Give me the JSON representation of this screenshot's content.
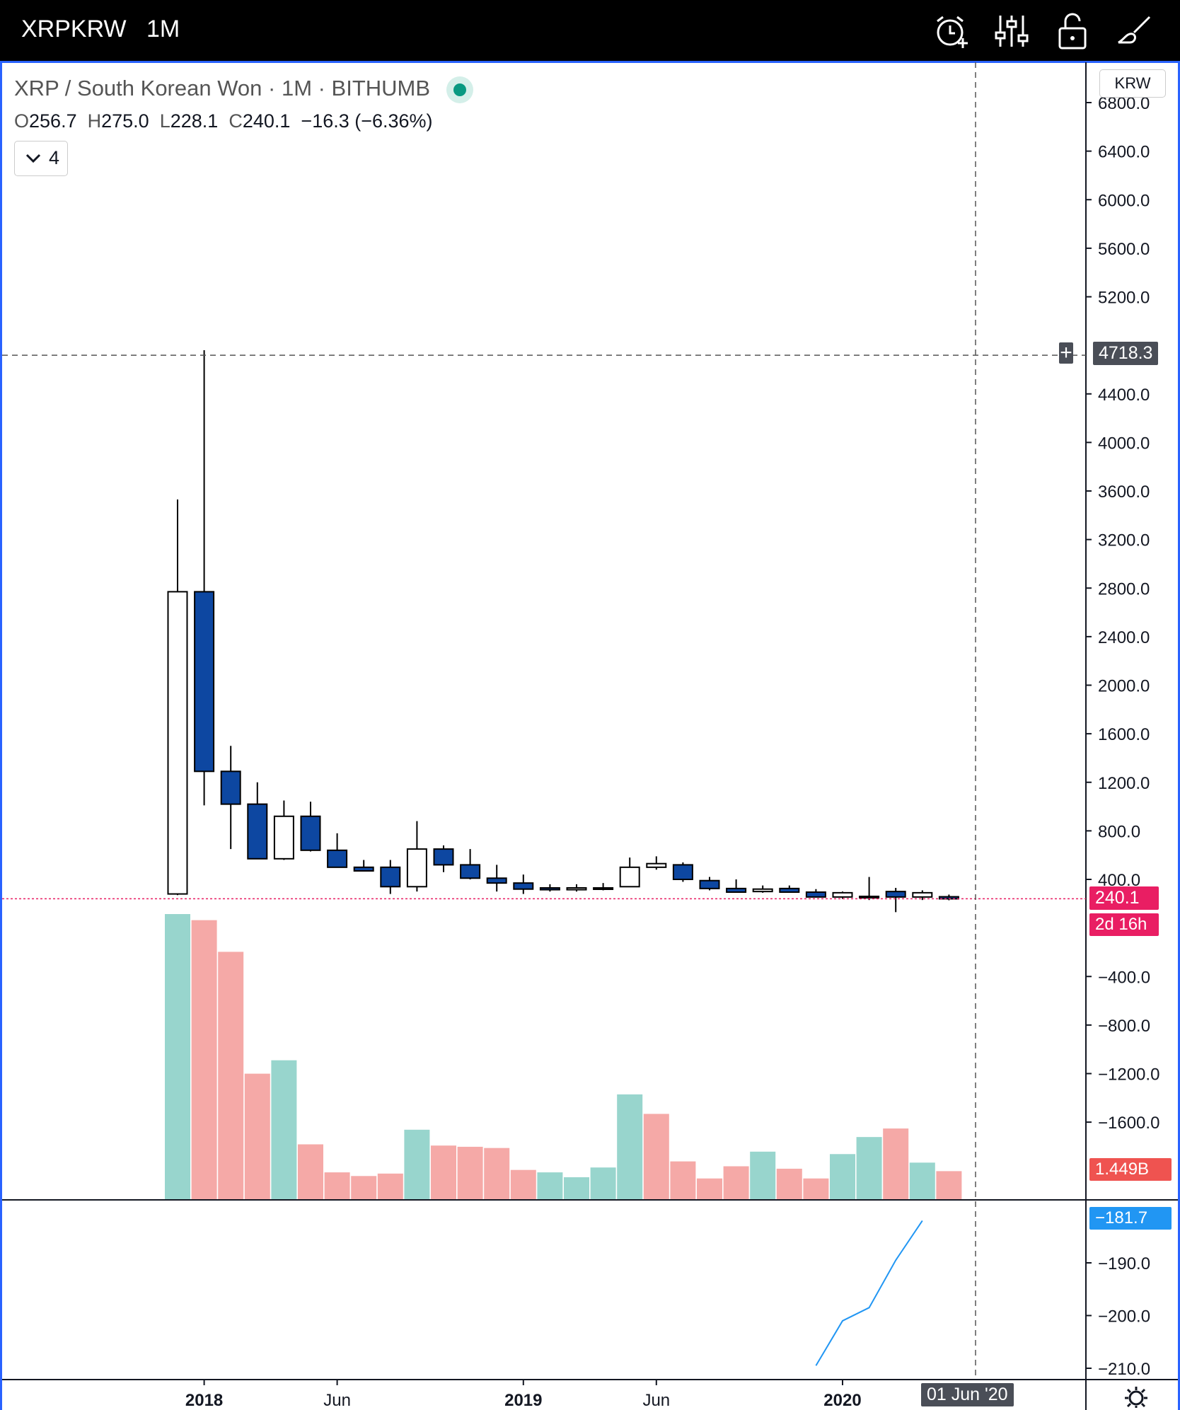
{
  "header": {
    "symbol": "XRPKRW",
    "interval": "1M",
    "icons": [
      "alarm-add-icon",
      "indicator-settings-icon",
      "unlock-icon",
      "drawing-brush-icon"
    ]
  },
  "legend": {
    "title": "XRP / South Korean Won · 1M · BITHUMB",
    "ohlc": {
      "o_label": "O",
      "o": "256.7",
      "h_label": "H",
      "h": "275.0",
      "l_label": "L",
      "l": "228.1",
      "c_label": "C",
      "c": "240.1",
      "change": "−16.3 (−6.36%)"
    },
    "collapse_count": "4",
    "status_color": "#089981"
  },
  "price_axis": {
    "currency": "KRW",
    "crosshair_label": "4718.3",
    "crosshair_plus": "+",
    "last_price_label": "240.1",
    "countdown_label": "2d 16h",
    "volume_label": "1.449B",
    "indicator_label": "−181.7"
  },
  "time_axis": {
    "crosshair_label": "01 Jun '20"
  },
  "colors": {
    "up_fill": "#ffffff",
    "down_fill": "#0d47a1",
    "outline": "#000000",
    "vol_up": "#98d5cd",
    "vol_down": "#f5a9a7",
    "last_price": "#e91e63",
    "volume_tag": "#ef5350",
    "indicator": "#2196f3",
    "crosshair_tag": "#4a4e57"
  },
  "chart_data": [
    {
      "type": "candlestick",
      "title": "XRP / South Korean Won · 1M · BITHUMB",
      "x": [
        "2017-12",
        "2018-01",
        "2018-02",
        "2018-03",
        "2018-04",
        "2018-05",
        "2018-06",
        "2018-07",
        "2018-08",
        "2018-09",
        "2018-10",
        "2018-11",
        "2018-12",
        "2019-01",
        "2019-02",
        "2019-03",
        "2019-04",
        "2019-05",
        "2019-06",
        "2019-07",
        "2019-08",
        "2019-09",
        "2019-10",
        "2019-11",
        "2019-12",
        "2020-01",
        "2020-02",
        "2020-03",
        "2020-04",
        "2020-05"
      ],
      "open": [
        280,
        2770,
        1290,
        1020,
        570,
        920,
        640,
        500,
        500,
        340,
        650,
        520,
        410,
        370,
        330,
        315,
        330,
        340,
        500,
        520,
        390,
        325,
        300,
        325,
        295,
        255,
        255,
        300,
        255,
        257
      ],
      "high": [
        3530,
        4760,
        1500,
        1200,
        1050,
        1040,
        780,
        560,
        560,
        880,
        680,
        650,
        520,
        440,
        360,
        360,
        370,
        580,
        590,
        540,
        420,
        400,
        350,
        350,
        320,
        300,
        420,
        330,
        310,
        275
      ],
      "low": [
        270,
        1010,
        650,
        570,
        560,
        630,
        520,
        480,
        280,
        300,
        460,
        400,
        300,
        280,
        300,
        300,
        310,
        340,
        480,
        380,
        310,
        310,
        290,
        290,
        270,
        240,
        230,
        130,
        230,
        228
      ],
      "close": [
        2770,
        1290,
        1020,
        570,
        920,
        640,
        500,
        470,
        340,
        650,
        520,
        410,
        370,
        320,
        315,
        330,
        330,
        500,
        530,
        400,
        325,
        295,
        320,
        295,
        255,
        290,
        260,
        255,
        290,
        240
      ],
      "ylim": [
        240,
        6800
      ],
      "y_ticks": [
        400,
        800,
        1200,
        1600,
        2000,
        2400,
        2800,
        3200,
        3600,
        4000,
        4400,
        5200,
        5600,
        6000,
        6400,
        6800
      ],
      "y_tick_labels": [
        "400.0",
        "800.0",
        "1200.0",
        "1600.0",
        "2000.0",
        "2400.0",
        "2800.0",
        "3200.0",
        "3600.0",
        "4000.0",
        "4400.0",
        "5200.0",
        "5600.0",
        "6000.0",
        "6400.0",
        "6800.0"
      ],
      "y_ticks_lower": [
        -400,
        -800,
        -1200,
        -1600
      ],
      "y_tick_lower_labels": [
        "−400.0",
        "−800.0",
        "−1200.0",
        "−1600.0"
      ],
      "x_tick_labels": [
        "2018",
        "Jun",
        "2019",
        "Jun",
        "2020"
      ],
      "x_tick_index": [
        1,
        6,
        13,
        18,
        25
      ],
      "x_tick_bold": [
        true,
        false,
        true,
        false,
        true
      ],
      "grid": false
    },
    {
      "type": "bar",
      "series": [
        {
          "name": "",
          "values": [
            23.4,
            22.9,
            20.3,
            10.3,
            11.4,
            4.5,
            2.2,
            1.9,
            2.1,
            5.7,
            4.4,
            4.3,
            4.2,
            2.4,
            2.2,
            1.8,
            2.6,
            8.6,
            7.0,
            3.1,
            1.7,
            2.7,
            3.9,
            2.5,
            1.7,
            3.7,
            5.1,
            5.8,
            3.0,
            2.3
          ],
          "direction": [
            "up",
            "down",
            "down",
            "down",
            "up",
            "down",
            "down",
            "down",
            "down",
            "up",
            "down",
            "down",
            "down",
            "down",
            "up",
            "up",
            "up",
            "up",
            "down",
            "down",
            "down",
            "down",
            "up",
            "down",
            "down",
            "up",
            "up",
            "down",
            "up",
            "down"
          ]
        }
      ]
    },
    {
      "type": "line",
      "series": [
        {
          "name": "",
          "x": [
            "2019-12",
            "2020-01",
            "2020-02",
            "2020-03",
            "2020-04"
          ],
          "values": [
            -209.5,
            -201.0,
            -198.5,
            -189.5,
            -182.0
          ]
        }
      ],
      "y_ticks": [
        -190,
        -200,
        -210
      ],
      "y_tick_labels": [
        "−190.0",
        "−200.0",
        "−210.0"
      ],
      "ylim": [
        -210,
        -180
      ]
    }
  ]
}
